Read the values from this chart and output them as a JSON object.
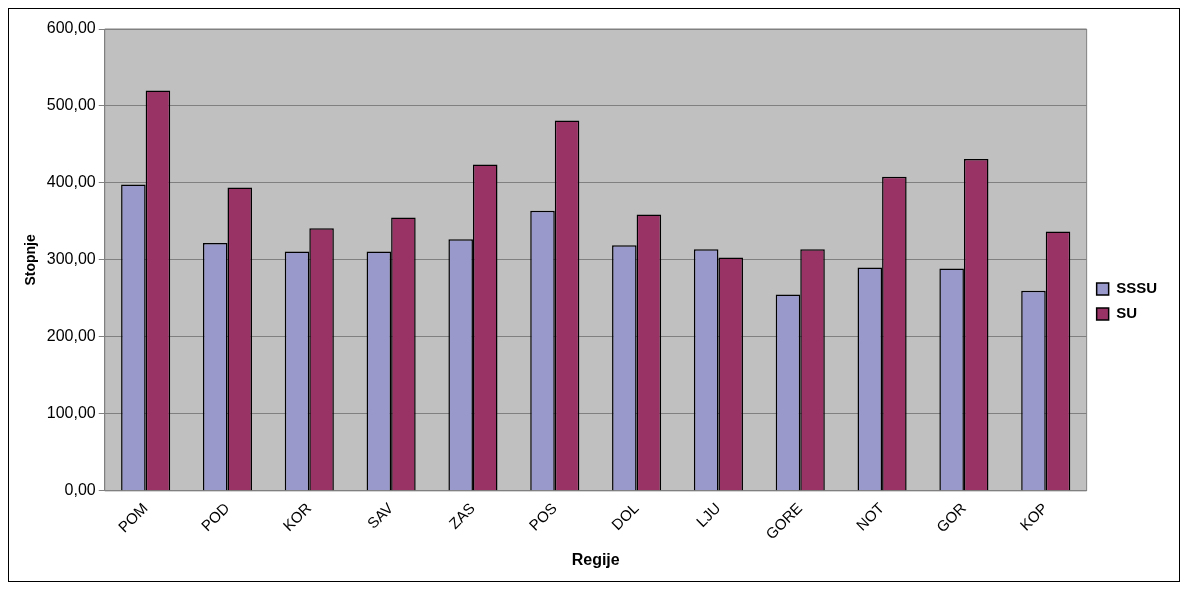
{
  "chart_data": {
    "type": "bar",
    "xlabel": "Regije",
    "ylabel": "Stopnje",
    "categories": [
      "POM",
      "POD",
      "KOR",
      "SAV",
      "ZAS",
      "POS",
      "DOL",
      "LJU",
      "GORE",
      "NOT",
      "GOR",
      "KOP"
    ],
    "series": [
      {
        "name": "SSSU",
        "color": "#9999cc",
        "values": [
          398,
          322,
          311,
          311,
          327,
          364,
          319,
          314,
          255,
          290,
          289,
          260
        ]
      },
      {
        "name": "SU",
        "color": "#993366",
        "values": [
          520,
          394,
          341,
          355,
          424,
          481,
          359,
          303,
          314,
          408,
          431,
          337
        ]
      }
    ],
    "ylim": [
      0,
      600
    ],
    "yticks": [
      {
        "value": 0,
        "label": "0,00"
      },
      {
        "value": 100,
        "label": "100,00"
      },
      {
        "value": 200,
        "label": "200,00"
      },
      {
        "value": 300,
        "label": "300,00"
      },
      {
        "value": 400,
        "label": "400,00"
      },
      {
        "value": 500,
        "label": "500,00"
      },
      {
        "value": 600,
        "label": "600,00"
      }
    ],
    "grid": "y",
    "legend": "right"
  }
}
